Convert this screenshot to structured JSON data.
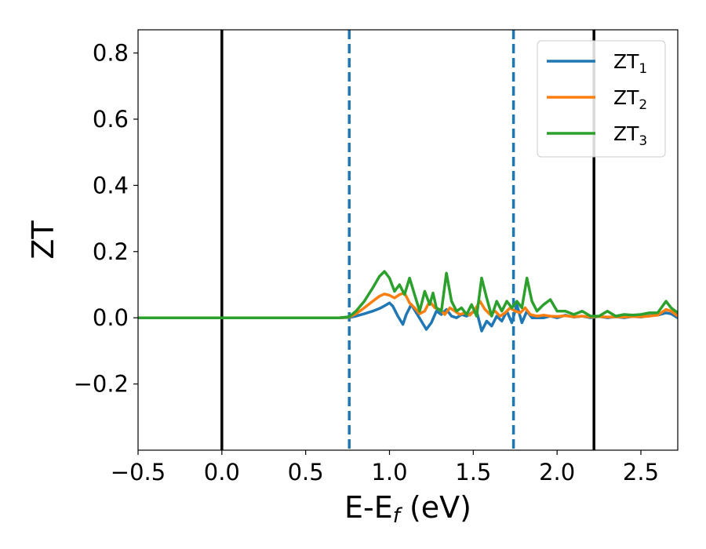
{
  "chart_data": {
    "type": "line",
    "xlabel": "E-E",
    "xlabel_sub": "f",
    "xlabel_unit": " (eV)",
    "ylabel": "ZT",
    "xlim": [
      -0.5,
      2.72
    ],
    "ylim": [
      -0.4,
      0.87
    ],
    "xticks": [
      -0.5,
      0.0,
      0.5,
      1.0,
      1.5,
      2.0,
      2.5
    ],
    "xtick_labels": [
      "−0.5",
      "0.0",
      "0.5",
      "1.0",
      "1.5",
      "2.0",
      "2.5"
    ],
    "yticks": [
      -0.2,
      0.0,
      0.2,
      0.4,
      0.6,
      0.8
    ],
    "ytick_labels": [
      "−0.2",
      "0.0",
      "0.2",
      "0.4",
      "0.6",
      "0.8"
    ],
    "grid": false,
    "legend_position": "top-right",
    "vlines": [
      {
        "x": 0.0,
        "style": "solid",
        "color": "#000000"
      },
      {
        "x": 2.22,
        "style": "solid",
        "color": "#000000"
      },
      {
        "x": 0.76,
        "style": "dashed",
        "color": "#1f77b4"
      },
      {
        "x": 1.74,
        "style": "dashed",
        "color": "#1f77b4"
      }
    ],
    "series": [
      {
        "name": "ZT",
        "sub": "1",
        "color": "#1f77b4",
        "x": [
          -0.5,
          0.7,
          0.76,
          0.8,
          0.85,
          0.9,
          0.94,
          0.97,
          1.0,
          1.02,
          1.05,
          1.08,
          1.1,
          1.13,
          1.16,
          1.19,
          1.22,
          1.25,
          1.28,
          1.31,
          1.34,
          1.37,
          1.4,
          1.43,
          1.46,
          1.49,
          1.52,
          1.55,
          1.58,
          1.61,
          1.64,
          1.67,
          1.7,
          1.73,
          1.76,
          1.79,
          1.82,
          1.85,
          1.88,
          1.92,
          1.96,
          2.0,
          2.05,
          2.1,
          2.15,
          2.2,
          2.25,
          2.3,
          2.35,
          2.4,
          2.45,
          2.5,
          2.55,
          2.6,
          2.65,
          2.68,
          2.72
        ],
        "y": [
          0.0,
          0.0,
          0.001,
          0.005,
          0.012,
          0.02,
          0.028,
          0.036,
          0.045,
          0.035,
          0.005,
          -0.02,
          0.01,
          0.04,
          0.015,
          -0.01,
          -0.035,
          -0.015,
          0.02,
          0.01,
          0.025,
          0.005,
          0.0,
          0.01,
          0.005,
          0.015,
          0.02,
          -0.04,
          -0.01,
          -0.025,
          0.005,
          -0.01,
          0.02,
          -0.015,
          0.04,
          -0.015,
          0.02,
          0.0,
          0.0,
          0.0,
          0.005,
          0.0,
          0.008,
          0.002,
          0.005,
          0.0,
          0.004,
          0.0,
          0.003,
          0.0,
          0.004,
          0.002,
          0.006,
          0.008,
          0.015,
          0.012,
          0.0
        ]
      },
      {
        "name": "ZT",
        "sub": "2",
        "color": "#ff7f0e",
        "x": [
          -0.5,
          0.7,
          0.76,
          0.8,
          0.85,
          0.9,
          0.94,
          0.97,
          1.0,
          1.03,
          1.06,
          1.09,
          1.12,
          1.15,
          1.18,
          1.21,
          1.24,
          1.27,
          1.3,
          1.33,
          1.36,
          1.39,
          1.42,
          1.45,
          1.48,
          1.51,
          1.54,
          1.57,
          1.6,
          1.63,
          1.66,
          1.69,
          1.72,
          1.75,
          1.78,
          1.81,
          1.84,
          1.88,
          1.92,
          1.96,
          2.0,
          2.05,
          2.1,
          2.15,
          2.2,
          2.25,
          2.3,
          2.35,
          2.4,
          2.45,
          2.5,
          2.55,
          2.6,
          2.65,
          2.68,
          2.72
        ],
        "y": [
          0.0,
          0.0,
          0.002,
          0.012,
          0.03,
          0.05,
          0.065,
          0.072,
          0.068,
          0.06,
          0.07,
          0.075,
          0.045,
          0.03,
          0.012,
          0.02,
          0.05,
          0.03,
          0.025,
          0.01,
          0.03,
          0.02,
          0.01,
          0.015,
          0.008,
          0.025,
          0.05,
          0.025,
          0.01,
          0.02,
          0.005,
          0.015,
          0.03,
          0.02,
          0.015,
          0.03,
          0.01,
          0.005,
          0.008,
          0.005,
          0.004,
          0.006,
          0.003,
          0.005,
          0.002,
          0.004,
          0.002,
          0.003,
          0.002,
          0.004,
          0.003,
          0.005,
          0.008,
          0.025,
          0.02,
          0.005
        ]
      },
      {
        "name": "ZT",
        "sub": "3",
        "color": "#2ca02c",
        "x": [
          -0.5,
          0.7,
          0.76,
          0.8,
          0.85,
          0.9,
          0.94,
          0.97,
          1.0,
          1.03,
          1.06,
          1.09,
          1.12,
          1.15,
          1.18,
          1.21,
          1.24,
          1.26,
          1.28,
          1.31,
          1.34,
          1.37,
          1.4,
          1.43,
          1.46,
          1.49,
          1.52,
          1.55,
          1.58,
          1.61,
          1.64,
          1.67,
          1.7,
          1.73,
          1.76,
          1.79,
          1.82,
          1.85,
          1.88,
          1.92,
          1.96,
          2.0,
          2.05,
          2.1,
          2.15,
          2.2,
          2.25,
          2.3,
          2.35,
          2.4,
          2.45,
          2.5,
          2.55,
          2.6,
          2.65,
          2.68,
          2.72
        ],
        "y": [
          0.0,
          0.0,
          0.003,
          0.02,
          0.05,
          0.09,
          0.125,
          0.14,
          0.12,
          0.08,
          0.1,
          0.07,
          0.12,
          0.07,
          0.02,
          0.08,
          0.04,
          0.075,
          0.03,
          0.02,
          0.135,
          0.05,
          0.02,
          0.03,
          0.01,
          0.04,
          0.005,
          0.12,
          0.06,
          0.005,
          0.05,
          0.02,
          0.05,
          0.03,
          0.05,
          0.03,
          0.12,
          0.05,
          0.02,
          0.04,
          0.055,
          0.02,
          0.02,
          0.01,
          0.02,
          0.005,
          0.005,
          0.02,
          0.005,
          0.01,
          0.008,
          0.01,
          0.015,
          0.015,
          0.05,
          0.03,
          0.015
        ]
      }
    ]
  }
}
